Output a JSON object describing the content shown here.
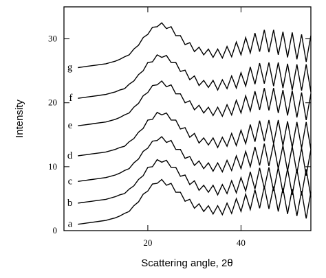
{
  "chart_data": {
    "type": "line",
    "xlabel": "Scattering angle, 2θ",
    "ylabel": "Intensity",
    "xlim": [
      2,
      55
    ],
    "ylim": [
      0,
      35
    ],
    "xticks": [
      20,
      40
    ],
    "yticks": [
      0,
      10,
      20,
      30
    ],
    "x": [
      5,
      6,
      7,
      8,
      9,
      10,
      11,
      12,
      13,
      14,
      15,
      16,
      17,
      18,
      19,
      20,
      21,
      22,
      23,
      24,
      25,
      26,
      27,
      28,
      29,
      30,
      31,
      32,
      33,
      34,
      35,
      36,
      37,
      38,
      39,
      40,
      41,
      42,
      43,
      44,
      45,
      46,
      47,
      48,
      49,
      50,
      51,
      52,
      53,
      54,
      55
    ],
    "series": [
      {
        "name": "a",
        "color": "#000000",
        "values": [
          1,
          1.1,
          1.2,
          1.3,
          1.4,
          1.5,
          1.6,
          1.8,
          2,
          2.3,
          2.7,
          3,
          3.9,
          4.5,
          5.7,
          6.2,
          7.3,
          7.4,
          8,
          7.1,
          7.4,
          6,
          6,
          4.6,
          4.9,
          3.5,
          4.2,
          3,
          3.9,
          2.6,
          3.9,
          2.5,
          4.3,
          2.7,
          5,
          3,
          5.7,
          3.3,
          6.4,
          3.5,
          6.9,
          3.4,
          6.9,
          3,
          6.6,
          2.6,
          6.5,
          2.3,
          6.2,
          1.9,
          6
        ]
      },
      {
        "name": "b",
        "color": "#000000",
        "values": [
          4.3,
          4.4,
          4.5,
          4.6,
          4.7,
          4.8,
          4.9,
          5.1,
          5.3,
          5.6,
          5.8,
          6.5,
          7,
          8,
          8.6,
          9.9,
          10,
          11.1,
          10.7,
          11,
          9.9,
          9.9,
          8.5,
          8.7,
          7.2,
          7.8,
          6.3,
          7.1,
          6,
          7.1,
          5.6,
          7.2,
          5.8,
          7.8,
          5.9,
          8.3,
          6.2,
          9.2,
          6.5,
          9.8,
          6.6,
          9.9,
          6.2,
          9.9,
          5.9,
          9.7,
          5.6,
          9.6,
          5.5,
          9.6,
          5.3
        ]
      },
      {
        "name": "c",
        "color": "#000000",
        "values": [
          7.7,
          7.8,
          7.9,
          8,
          8.1,
          8.2,
          8.3,
          8.5,
          8.7,
          9,
          9.4,
          9.7,
          10.6,
          11.2,
          12.4,
          12.9,
          14,
          14.1,
          14.7,
          13.8,
          14.1,
          12.7,
          12.7,
          11.3,
          11.6,
          10.2,
          10.9,
          9.7,
          10.6,
          9.3,
          10.6,
          9.2,
          11,
          9.4,
          11.7,
          9.7,
          12.4,
          10,
          13.1,
          10.2,
          13.6,
          10.1,
          13.6,
          9.7,
          13.3,
          9.3,
          13.2,
          9,
          12.9,
          8.6,
          12.7
        ]
      },
      {
        "name": "d",
        "color": "#000000",
        "values": [
          11.7,
          11.8,
          11.9,
          12,
          12.1,
          12.2,
          12.3,
          12.5,
          12.7,
          13,
          13.2,
          13.9,
          14.4,
          15.4,
          16,
          17.3,
          17.4,
          18.5,
          18.1,
          18.4,
          17.3,
          17.3,
          15.9,
          16.1,
          14.6,
          15.2,
          13.7,
          14.5,
          13.4,
          14.5,
          13,
          14.6,
          13.2,
          15.2,
          13.3,
          15.7,
          13.6,
          16.6,
          13.9,
          17.2,
          14,
          17.3,
          13.6,
          17.3,
          13.3,
          17.1,
          13,
          17,
          12.9,
          17,
          12.7
        ]
      },
      {
        "name": "e",
        "color": "#000000",
        "values": [
          16.4,
          16.5,
          16.6,
          16.7,
          16.8,
          16.9,
          17,
          17.2,
          17.4,
          17.7,
          18.1,
          18.4,
          19.3,
          19.9,
          21.1,
          21.6,
          22.7,
          22.8,
          23.4,
          22.5,
          22.8,
          21.4,
          21.4,
          20,
          20.3,
          18.9,
          19.6,
          18.4,
          19.3,
          18,
          19.3,
          17.9,
          19.7,
          18.1,
          20.4,
          18.4,
          21.1,
          18.7,
          21.8,
          18.9,
          22.3,
          18.8,
          22.3,
          18.4,
          22,
          18,
          21.9,
          17.7,
          21.6,
          17.3,
          21.4
        ]
      },
      {
        "name": "f",
        "color": "#000000",
        "values": [
          20.7,
          20.8,
          20.9,
          21,
          21.1,
          21.2,
          21.3,
          21.5,
          21.7,
          22,
          22.2,
          22.9,
          23.4,
          24.4,
          25,
          26.3,
          26.4,
          27.5,
          27.1,
          27.4,
          26.3,
          26.3,
          24.9,
          25.1,
          23.6,
          24.2,
          22.7,
          23.5,
          22.4,
          23.5,
          22,
          23.6,
          22.2,
          24.2,
          22.3,
          24.7,
          22.6,
          25.6,
          22.9,
          26.2,
          23,
          26.3,
          22.6,
          26.3,
          22.3,
          26.1,
          22,
          26,
          21.9,
          26,
          21.7
        ]
      },
      {
        "name": "g",
        "color": "#000000",
        "values": [
          25.5,
          25.6,
          25.7,
          25.8,
          25.9,
          26,
          26.1,
          26.3,
          26.5,
          26.8,
          27.2,
          27.5,
          28.4,
          29,
          30.2,
          30.7,
          31.8,
          31.9,
          32.5,
          31.6,
          31.9,
          30.5,
          30.5,
          29.1,
          29.4,
          28,
          28.7,
          27.5,
          28.4,
          27.1,
          28.4,
          27,
          28.8,
          27.2,
          29.5,
          27.5,
          30.2,
          27.8,
          30.9,
          28,
          31.4,
          27.9,
          31.4,
          27.5,
          31.1,
          27.1,
          31,
          26.8,
          30.7,
          26.4,
          30.5
        ]
      }
    ]
  }
}
